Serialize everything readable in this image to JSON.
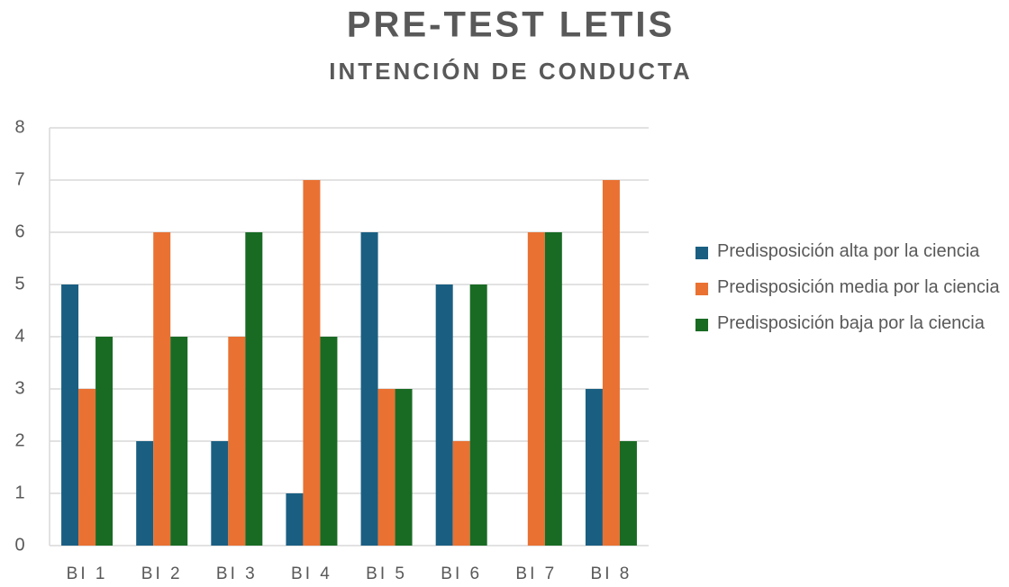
{
  "chart_data": {
    "type": "bar",
    "title": "PRE-TEST LETIS",
    "subtitle": "INTENCIÓN DE CONDUCTA",
    "categories": [
      "BI 1",
      "BI 2",
      "BI 3",
      "BI 4",
      "BI 5",
      "BI 6",
      "BI 7",
      "BI 8"
    ],
    "series": [
      {
        "name": "Predisposición alta por la ciencia",
        "color": "#1a5f82",
        "values": [
          5,
          2,
          2,
          1,
          6,
          5,
          0,
          3
        ]
      },
      {
        "name": "Predisposición media por la ciencia",
        "color": "#e97132",
        "values": [
          3,
          6,
          4,
          7,
          3,
          2,
          6,
          7
        ]
      },
      {
        "name": "Predisposición baja por la ciencia",
        "color": "#196b24",
        "values": [
          4,
          4,
          6,
          4,
          3,
          5,
          6,
          2
        ]
      }
    ],
    "ylim": [
      0,
      8
    ],
    "yticks": [
      0,
      1,
      2,
      3,
      4,
      5,
      6,
      7,
      8
    ],
    "grid": true,
    "legend": "right"
  }
}
